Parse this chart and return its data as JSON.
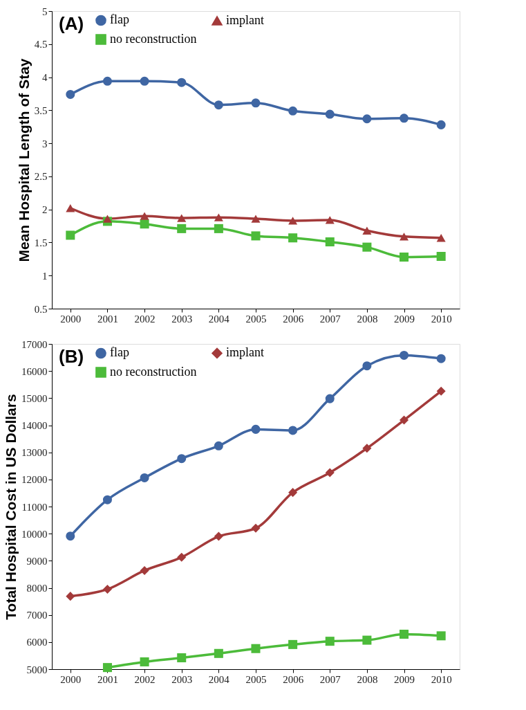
{
  "chart_data": [
    {
      "type": "line",
      "ylabel": "Mean Hospital Length of Stay",
      "annotations": [
        "(A)"
      ],
      "categories": [
        "2000",
        "2001",
        "2002",
        "2003",
        "2004",
        "2005",
        "2006",
        "2007",
        "2008",
        "2009",
        "2010"
      ],
      "series": [
        {
          "name": "flap",
          "color": "#3f66a3",
          "marker": "circle",
          "values": [
            3.74,
            3.94,
            3.94,
            3.92,
            3.58,
            3.61,
            3.49,
            3.44,
            3.37,
            3.38,
            3.28
          ]
        },
        {
          "name": "implant",
          "color": "#a33a3a",
          "marker": "triangle",
          "values": [
            2.02,
            1.86,
            1.9,
            1.87,
            1.88,
            1.86,
            1.83,
            1.84,
            1.68,
            1.59,
            1.57
          ]
        },
        {
          "name": "no reconstruction",
          "color": "#4cbb3a",
          "marker": "square",
          "values": [
            1.61,
            1.82,
            1.78,
            1.71,
            1.71,
            1.6,
            1.57,
            1.51,
            1.43,
            1.28,
            1.29
          ]
        }
      ],
      "ylim": [
        0.5,
        5
      ],
      "yticks": [
        0.5,
        1,
        1.5,
        2,
        2.5,
        3,
        3.5,
        4,
        4.5,
        5
      ],
      "grid": false,
      "legend": "top left"
    },
    {
      "type": "line",
      "ylabel": "Total Hospital Cost in US Dollars",
      "annotations": [
        "(B)"
      ],
      "categories": [
        "2000",
        "2001",
        "2002",
        "2003",
        "2004",
        "2005",
        "2006",
        "2007",
        "2008",
        "2009",
        "2010"
      ],
      "series": [
        {
          "name": "flap",
          "color": "#3f66a3",
          "marker": "circle",
          "values": [
            9910,
            11250,
            12060,
            12770,
            13240,
            13850,
            13810,
            14980,
            16190,
            16580,
            16460
          ]
        },
        {
          "name": "implant",
          "color": "#a33a3a",
          "marker": "diamond",
          "values": [
            7690,
            7950,
            8640,
            9130,
            9900,
            10200,
            11520,
            12250,
            13150,
            14190,
            15260
          ]
        },
        {
          "name": "no reconstruction",
          "color": "#4cbb3a",
          "marker": "square",
          "values": [
            null,
            5060,
            5270,
            5420,
            5580,
            5760,
            5910,
            6030,
            6070,
            6290,
            6230
          ]
        }
      ],
      "ylim": [
        5000,
        17000
      ],
      "yticks": [
        5000,
        6000,
        7000,
        8000,
        9000,
        10000,
        11000,
        12000,
        13000,
        14000,
        15000,
        16000,
        17000
      ],
      "grid": false,
      "legend": "top left"
    }
  ]
}
